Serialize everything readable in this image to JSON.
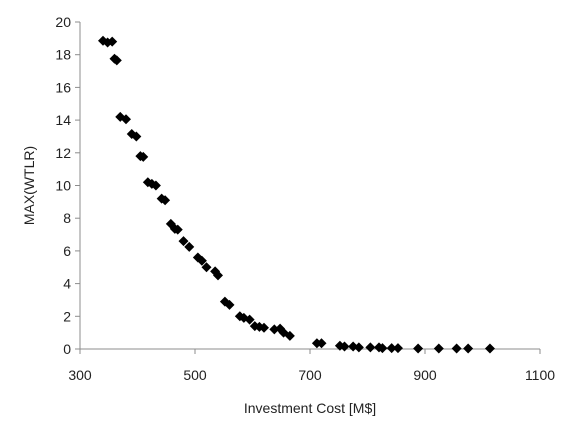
{
  "chart_data": {
    "type": "scatter",
    "title": "",
    "xlabel": "Investment Cost [M$]",
    "ylabel": "MAX(WTLR)",
    "xlim": [
      300,
      1100
    ],
    "ylim": [
      0,
      20
    ],
    "x_ticks": [
      300,
      500,
      700,
      900,
      1100
    ],
    "y_ticks": [
      0,
      2,
      4,
      6,
      8,
      10,
      12,
      14,
      16,
      18,
      20
    ],
    "x_tick_labels": [
      "300",
      "500",
      "700",
      "900",
      "1100"
    ],
    "y_tick_labels": [
      "0",
      "2",
      "4",
      "6",
      "8",
      "10",
      "12",
      "14",
      "16",
      "18",
      "20"
    ],
    "grid": false,
    "legend": "none",
    "marker": "diamond",
    "marker_color": "#000000",
    "series": [
      {
        "points": [
          [
            340,
            18.85
          ],
          [
            348,
            18.75
          ],
          [
            356,
            18.8
          ],
          [
            360,
            17.75
          ],
          [
            364,
            17.65
          ],
          [
            370,
            14.2
          ],
          [
            380,
            14.05
          ],
          [
            390,
            13.15
          ],
          [
            398,
            13.0
          ],
          [
            405,
            11.8
          ],
          [
            410,
            11.75
          ],
          [
            418,
            10.2
          ],
          [
            425,
            10.1
          ],
          [
            432,
            10.0
          ],
          [
            442,
            9.2
          ],
          [
            448,
            9.1
          ],
          [
            458,
            7.65
          ],
          [
            465,
            7.35
          ],
          [
            470,
            7.3
          ],
          [
            480,
            6.6
          ],
          [
            490,
            6.25
          ],
          [
            505,
            5.6
          ],
          [
            512,
            5.4
          ],
          [
            520,
            5.0
          ],
          [
            535,
            4.75
          ],
          [
            540,
            4.5
          ],
          [
            552,
            2.9
          ],
          [
            560,
            2.7
          ],
          [
            578,
            2.0
          ],
          [
            585,
            1.9
          ],
          [
            595,
            1.8
          ],
          [
            604,
            1.4
          ],
          [
            612,
            1.35
          ],
          [
            620,
            1.3
          ],
          [
            638,
            1.2
          ],
          [
            648,
            1.25
          ],
          [
            654,
            1.0
          ],
          [
            665,
            0.8
          ],
          [
            712,
            0.35
          ],
          [
            720,
            0.35
          ],
          [
            752,
            0.2
          ],
          [
            760,
            0.15
          ],
          [
            775,
            0.15
          ],
          [
            785,
            0.1
          ],
          [
            805,
            0.1
          ],
          [
            820,
            0.1
          ],
          [
            826,
            0.05
          ],
          [
            842,
            0.05
          ],
          [
            853,
            0.05
          ],
          [
            888,
            0.03
          ],
          [
            924,
            0.03
          ],
          [
            955,
            0.03
          ],
          [
            975,
            0.03
          ],
          [
            1013,
            0.03
          ]
        ]
      }
    ]
  }
}
